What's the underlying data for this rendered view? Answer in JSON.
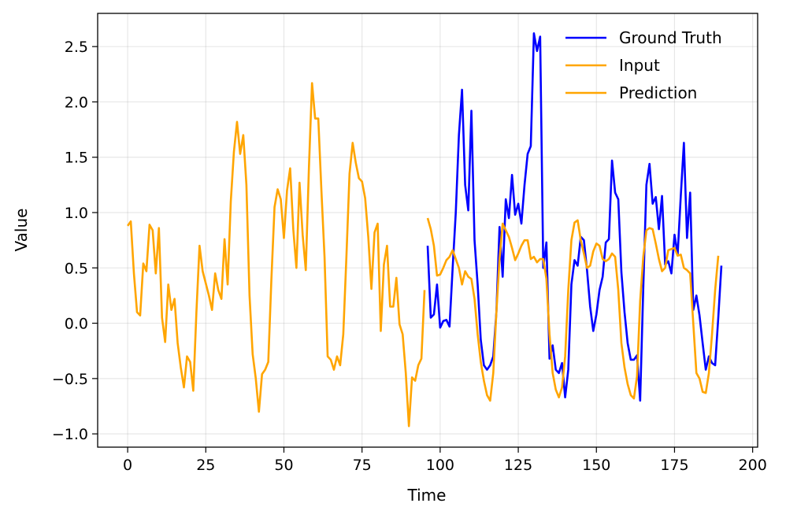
{
  "chart_data": {
    "type": "line",
    "xlabel": "Time",
    "ylabel": "Value",
    "xlim": [
      -9.6,
      201.6
    ],
    "ylim": [
      -1.12,
      2.8
    ],
    "grid": true,
    "legend_position": "top-right",
    "x_ticks": [
      0,
      25,
      50,
      75,
      100,
      125,
      150,
      175,
      200
    ],
    "x_tick_labels": [
      "0",
      "25",
      "50",
      "75",
      "100",
      "125",
      "150",
      "175",
      "200"
    ],
    "y_ticks": [
      -1.0,
      -0.5,
      0.0,
      0.5,
      1.0,
      1.5,
      2.0,
      2.5
    ],
    "y_tick_labels": [
      "−1.0",
      "−0.5",
      "0.0",
      "0.5",
      "1.0",
      "1.5",
      "2.0",
      "2.5"
    ],
    "series": [
      {
        "name": "Ground Truth",
        "color": "#0000ff",
        "x_start": 96,
        "values": [
          0.7,
          0.05,
          0.08,
          0.35,
          -0.04,
          0.02,
          0.03,
          -0.03,
          0.5,
          1.0,
          1.7,
          2.11,
          1.25,
          1.02,
          1.92,
          0.75,
          0.35,
          -0.15,
          -0.38,
          -0.42,
          -0.38,
          -0.3,
          0.1,
          0.87,
          0.42,
          1.12,
          0.95,
          1.34,
          0.98,
          1.08,
          0.9,
          1.25,
          1.53,
          1.6,
          2.62,
          2.46,
          2.59,
          0.5,
          0.73,
          -0.32,
          -0.2,
          -0.42,
          -0.45,
          -0.36,
          -0.67,
          -0.42,
          0.35,
          0.57,
          0.52,
          0.78,
          0.75,
          0.48,
          0.15,
          -0.07,
          0.08,
          0.3,
          0.42,
          0.73,
          0.76,
          1.47,
          1.18,
          1.12,
          0.46,
          0.1,
          -0.18,
          -0.33,
          -0.33,
          -0.29,
          -0.7,
          0.32,
          1.25,
          1.44,
          1.08,
          1.14,
          0.85,
          1.15,
          0.53,
          0.56,
          0.45,
          0.8,
          0.62,
          1.15,
          1.63,
          0.77,
          1.18,
          0.12,
          0.25,
          0.07,
          -0.18,
          -0.42,
          -0.3,
          -0.36,
          -0.38,
          0.05,
          0.52
        ]
      },
      {
        "name": "Input",
        "color": "#ffa500",
        "x_start": 0,
        "values": [
          0.88,
          0.92,
          0.45,
          0.1,
          0.07,
          0.54,
          0.47,
          0.89,
          0.84,
          0.45,
          0.86,
          0.05,
          -0.17,
          0.35,
          0.12,
          0.22,
          -0.18,
          -0.4,
          -0.58,
          -0.3,
          -0.35,
          -0.61,
          0.1,
          0.7,
          0.47,
          0.36,
          0.25,
          0.12,
          0.45,
          0.3,
          0.22,
          0.76,
          0.35,
          1.1,
          1.55,
          1.82,
          1.53,
          1.7,
          1.25,
          0.25,
          -0.28,
          -0.5,
          -0.8,
          -0.46,
          -0.42,
          -0.35,
          0.4,
          1.05,
          1.21,
          1.12,
          0.77,
          1.2,
          1.4,
          0.85,
          0.5,
          1.27,
          0.8,
          0.48,
          1.4,
          2.17,
          1.85,
          1.85,
          1.2,
          0.6,
          -0.3,
          -0.33,
          -0.42,
          -0.3,
          -0.38,
          -0.1,
          0.6,
          1.35,
          1.63,
          1.45,
          1.31,
          1.28,
          1.13,
          0.78,
          0.31,
          0.82,
          0.9,
          -0.07,
          0.53,
          0.7,
          0.15,
          0.15,
          0.41,
          -0.01,
          -0.1,
          -0.45,
          -0.93,
          -0.49,
          -0.52,
          -0.38,
          -0.32,
          0.3
        ]
      },
      {
        "name": "Prediction",
        "color": "#ffa500",
        "x_start": 96,
        "values": [
          0.95,
          0.85,
          0.7,
          0.43,
          0.44,
          0.5,
          0.57,
          0.6,
          0.66,
          0.58,
          0.5,
          0.35,
          0.47,
          0.42,
          0.4,
          0.22,
          -0.1,
          -0.35,
          -0.52,
          -0.65,
          -0.7,
          -0.45,
          0.1,
          0.58,
          0.9,
          0.84,
          0.78,
          0.68,
          0.57,
          0.63,
          0.7,
          0.75,
          0.75,
          0.58,
          0.6,
          0.55,
          0.58,
          0.58,
          0.4,
          -0.1,
          -0.45,
          -0.6,
          -0.67,
          -0.58,
          -0.3,
          0.3,
          0.75,
          0.91,
          0.93,
          0.75,
          0.63,
          0.5,
          0.52,
          0.65,
          0.72,
          0.7,
          0.58,
          0.56,
          0.58,
          0.63,
          0.6,
          0.3,
          -0.18,
          -0.4,
          -0.55,
          -0.65,
          -0.68,
          -0.48,
          0.2,
          0.6,
          0.84,
          0.86,
          0.85,
          0.72,
          0.58,
          0.47,
          0.5,
          0.66,
          0.67,
          0.68,
          0.61,
          0.62,
          0.5,
          0.48,
          0.45,
          0.0,
          -0.45,
          -0.5,
          -0.62,
          -0.63,
          -0.45,
          -0.1,
          0.3,
          0.61
        ]
      }
    ]
  }
}
